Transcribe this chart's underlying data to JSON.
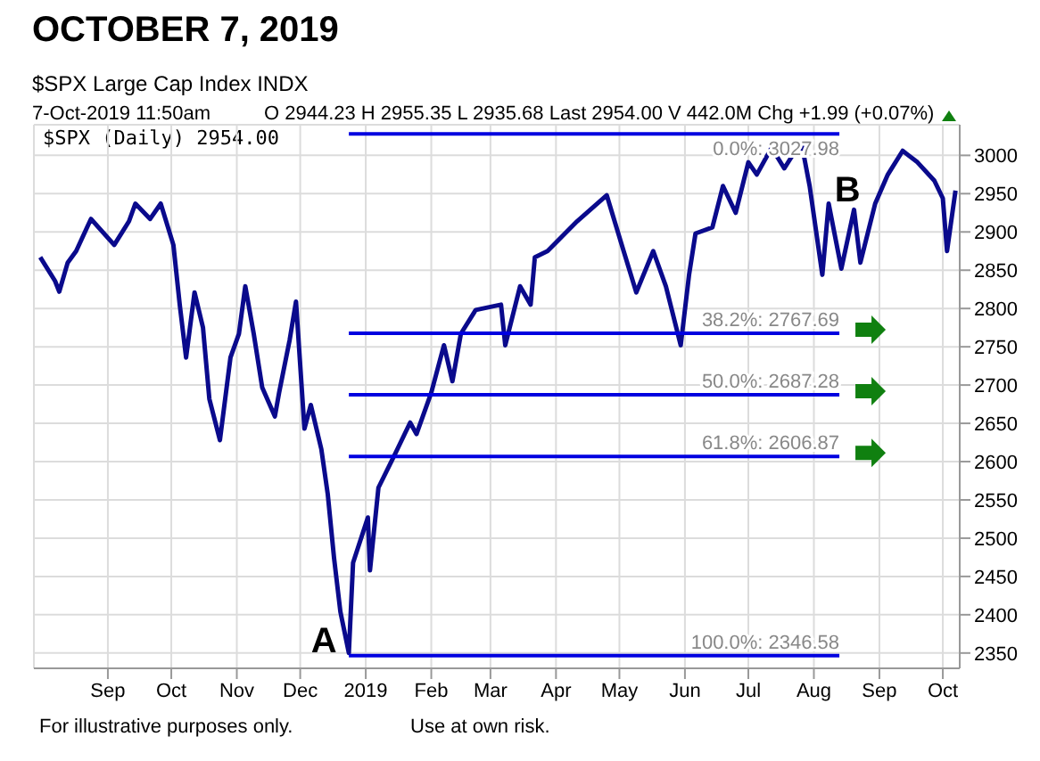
{
  "chart_data": {
    "type": "line",
    "title": "OCTOBER 7, 2019",
    "x": [
      "2018-07-31",
      "2018-08-07",
      "2018-08-09",
      "2018-08-13",
      "2018-08-17",
      "2018-08-24",
      "2018-09-04",
      "2018-09-11",
      "2018-09-14",
      "2018-09-21",
      "2018-09-26",
      "2018-10-02",
      "2018-10-05",
      "2018-10-08",
      "2018-10-12",
      "2018-10-16",
      "2018-10-19",
      "2018-10-24",
      "2018-10-29",
      "2018-11-02",
      "2018-11-05",
      "2018-11-09",
      "2018-11-13",
      "2018-11-19",
      "2018-11-21",
      "2018-11-26",
      "2018-11-29",
      "2018-12-03",
      "2018-12-06",
      "2018-12-11",
      "2018-12-14",
      "2018-12-17",
      "2018-12-20",
      "2018-12-24",
      "2018-12-26",
      "2019-01-02",
      "2019-01-03",
      "2019-01-07",
      "2019-01-14",
      "2019-01-22",
      "2019-01-25",
      "2019-02-01",
      "2019-02-07",
      "2019-02-11",
      "2019-02-15",
      "2019-02-22",
      "2019-03-06",
      "2019-03-08",
      "2019-03-15",
      "2019-03-20",
      "2019-03-22",
      "2019-03-28",
      "2019-04-11",
      "2019-04-25",
      "2019-05-03",
      "2019-05-09",
      "2019-05-17",
      "2019-05-23",
      "2019-05-30",
      "2019-06-03",
      "2019-06-06",
      "2019-06-14",
      "2019-06-19",
      "2019-06-25",
      "2019-07-01",
      "2019-07-05",
      "2019-07-12",
      "2019-07-18",
      "2019-07-26",
      "2019-07-30",
      "2019-08-05",
      "2019-08-08",
      "2019-08-14",
      "2019-08-20",
      "2019-08-23",
      "2019-08-30",
      "2019-09-05",
      "2019-09-12",
      "2019-09-19",
      "2019-09-27",
      "2019-10-01",
      "2019-10-03",
      "2019-10-07"
    ],
    "series": [
      {
        "color": "#0a0a8c",
        "values": [
          2867,
          2836,
          2822,
          2860,
          2875,
          2917,
          2883,
          2914,
          2937,
          2917,
          2937,
          2883,
          2805,
          2736,
          2821,
          2775,
          2682,
          2628,
          2736,
          2767,
          2829,
          2767,
          2697,
          2659,
          2690,
          2759,
          2809,
          2643,
          2674,
          2616,
          2558,
          2474,
          2404,
          2350,
          2468,
          2527,
          2458,
          2566,
          2605,
          2651,
          2636,
          2690,
          2752,
          2705,
          2767,
          2798,
          2805,
          2752,
          2829,
          2805,
          2867,
          2875,
          2914,
          2948,
          2875,
          2821,
          2875,
          2829,
          2752,
          2845,
          2898,
          2906,
          2960,
          2925,
          2991,
          2975,
          3010,
          2983,
          3018,
          2960,
          2844,
          2937,
          2852,
          2929,
          2860,
          2937,
          2975,
          3006,
          2991,
          2967,
          2944,
          2875,
          2954
        ]
      }
    ],
    "xlim": [
      "2018-07-28",
      "2019-10-09"
    ],
    "xticks": [
      {
        "value": "2018-09-01",
        "label": "Sep"
      },
      {
        "value": "2018-10-01",
        "label": "Oct"
      },
      {
        "value": "2018-11-01",
        "label": "Nov"
      },
      {
        "value": "2018-12-01",
        "label": "Dec"
      },
      {
        "value": "2019-01-01",
        "label": "2019"
      },
      {
        "value": "2019-02-01",
        "label": "Feb"
      },
      {
        "value": "2019-03-01",
        "label": "Mar"
      },
      {
        "value": "2019-04-01",
        "label": "Apr"
      },
      {
        "value": "2019-05-01",
        "label": "May"
      },
      {
        "value": "2019-06-01",
        "label": "Jun"
      },
      {
        "value": "2019-07-01",
        "label": "Jul"
      },
      {
        "value": "2019-08-01",
        "label": "Aug"
      },
      {
        "value": "2019-09-01",
        "label": "Sep"
      },
      {
        "value": "2019-10-01",
        "label": "Oct"
      }
    ],
    "ylim": [
      2330,
      3040
    ],
    "yticks": [
      2350,
      2400,
      2450,
      2500,
      2550,
      2600,
      2650,
      2700,
      2750,
      2800,
      2850,
      2900,
      2950,
      3000
    ],
    "grid": true,
    "marker": "none",
    "line_style": "solid",
    "ref_lines": [
      {
        "axis": "y",
        "value": 3027.98,
        "label": "0.0%: 3027.98",
        "color": "#0000e0"
      },
      {
        "axis": "y",
        "value": 2767.69,
        "label": "38.2%: 2767.69",
        "color": "#0000e0"
      },
      {
        "axis": "y",
        "value": 2687.28,
        "label": "50.0%: 2687.28",
        "color": "#0000e0"
      },
      {
        "axis": "y",
        "value": 2606.87,
        "label": "61.8%: 2606.87",
        "color": "#0000e0"
      },
      {
        "axis": "y",
        "value": 2346.58,
        "label": "100.0%: 2346.58",
        "color": "#0000e0"
      }
    ],
    "annotations": [
      "$SPX Large Cap Index INDX",
      "7-Oct-2019 11:50am",
      "O 2944.23 H 2955.35 L 2935.68 Last 2954.00 V 442.0M Chg +1.99 (+0.07%)",
      "$SPX (Daily) 2954.00",
      {
        "text": "A",
        "x": "2018-12-24",
        "y": 2346.58
      },
      {
        "text": "B",
        "x": "2019-07-26",
        "y": 3027.98
      },
      "For illustrative purposes only.",
      "Use at own risk."
    ]
  }
}
